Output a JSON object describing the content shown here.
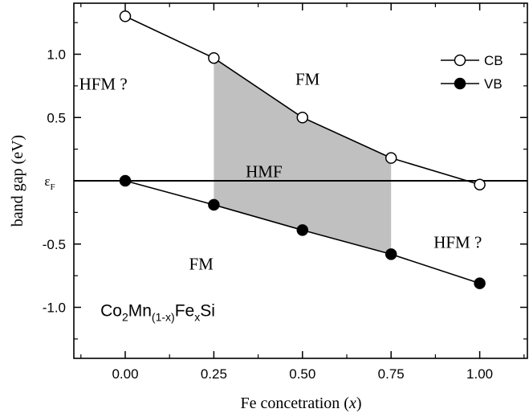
{
  "chart_data": {
    "type": "line",
    "title": "",
    "xlabel": "Fe concetration (x)",
    "xlabel_parts": [
      "Fe concetration (",
      "x",
      ")"
    ],
    "ylabel": "band gap (eV)",
    "xlim": [
      -0.15,
      1.15
    ],
    "ylim": [
      -1.4,
      1.4
    ],
    "x_ticks": [
      "0.00",
      "0.25",
      "0.50",
      "0.75",
      "1.00"
    ],
    "y_ticks": [
      "-1.0",
      "-0.5",
      "εF",
      "0.5",
      "1.0"
    ],
    "y_tick_values": [
      -1.0,
      -0.5,
      0.0,
      0.5,
      1.0
    ],
    "grid": false,
    "legend_position": "top-right",
    "fermi_level": 0.0,
    "series": [
      {
        "name": "CB",
        "marker": "open-circle",
        "x": [
          0.0,
          0.25,
          0.5,
          0.75,
          1.0
        ],
        "y": [
          1.3,
          0.97,
          0.5,
          0.18,
          -0.03
        ]
      },
      {
        "name": "VB",
        "marker": "filled-circle",
        "x": [
          0.0,
          0.25,
          0.5,
          0.75,
          1.0
        ],
        "y": [
          0.0,
          -0.19,
          -0.39,
          -0.58,
          -0.81
        ]
      }
    ],
    "shaded_region": {
      "label": "HMF",
      "x_range": [
        0.25,
        0.75
      ],
      "color": "#c0c0c0"
    },
    "annotations": [
      {
        "text": "HFM ?",
        "x": -0.13,
        "y": 0.72
      },
      {
        "text": "FM",
        "x": 0.48,
        "y": 0.76
      },
      {
        "text": "HMF",
        "x": 0.34,
        "y": 0.03
      },
      {
        "text": "FM",
        "x": 0.18,
        "y": -0.7
      },
      {
        "text": "HFM ?",
        "x": 0.87,
        "y": -0.53
      }
    ],
    "compound": "Co2Mn(1-x)FexSi",
    "compound_parts": {
      "a": "Co",
      "b": "2",
      "c": "Mn",
      "d": "(1-x)",
      "e": "Fe",
      "f": "x",
      "g": "Si"
    },
    "compound_position": {
      "x": -0.07,
      "y": -1.07
    }
  }
}
